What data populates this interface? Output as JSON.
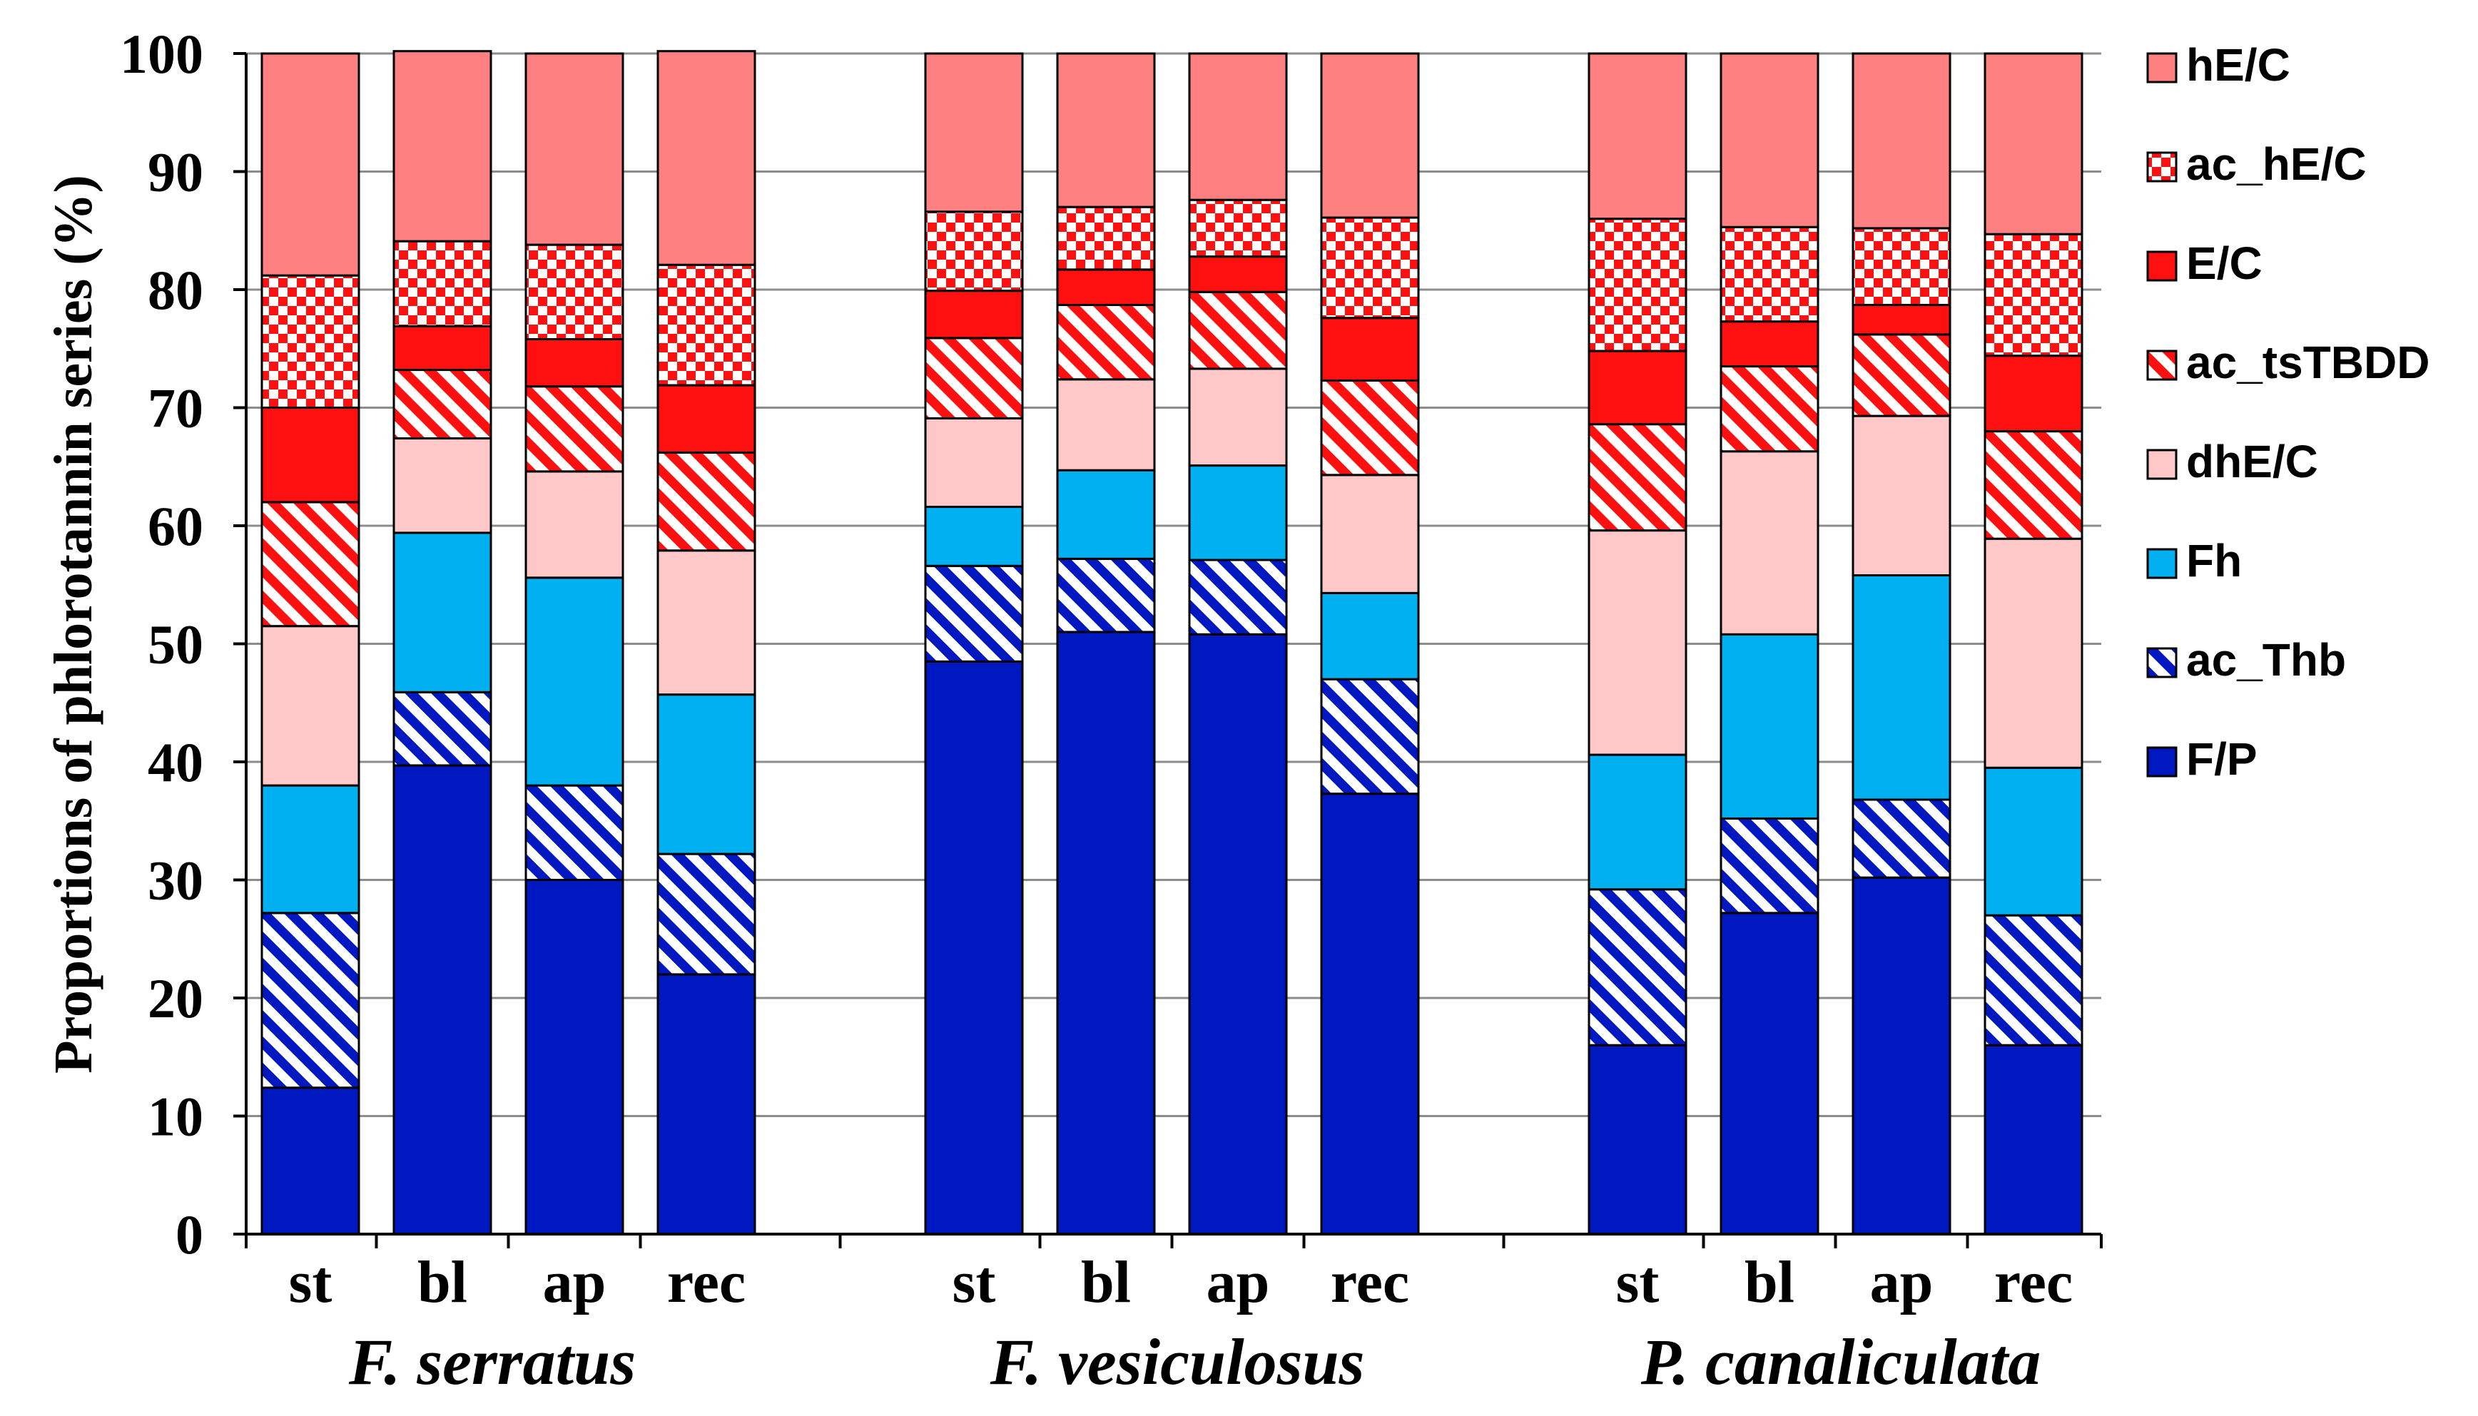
{
  "chart_data": {
    "type": "bar",
    "stacked": true,
    "percent": true,
    "ylabel": "Proportions of phlorotannin series (%)",
    "ylim": [
      0,
      100
    ],
    "yticks": [
      0,
      10,
      20,
      30,
      40,
      50,
      60,
      70,
      80,
      90,
      100
    ],
    "grid": true,
    "legend_position": "right",
    "groups": [
      {
        "name": "F. serratus",
        "categories": [
          "st",
          "bl",
          "ap",
          "rec"
        ]
      },
      {
        "name": "F. vesiculosus",
        "categories": [
          "st",
          "bl",
          "ap",
          "rec"
        ]
      },
      {
        "name": "P. canaliculata",
        "categories": [
          "st",
          "bl",
          "ap",
          "rec"
        ]
      }
    ],
    "series": [
      {
        "name": "F/P",
        "color": "#0018C0",
        "pattern": "solid",
        "values": [
          12.4,
          39.7,
          30.0,
          22.0,
          48.5,
          51.0,
          50.8,
          37.3,
          16.0,
          27.2,
          30.2,
          16.0
        ]
      },
      {
        "name": "ac_Thb",
        "color": "#0018C0",
        "pattern": "diagonal-stripe",
        "values": [
          14.8,
          6.2,
          8.0,
          10.2,
          8.1,
          6.2,
          6.3,
          9.7,
          13.2,
          8.0,
          6.6,
          11.0
        ]
      },
      {
        "name": "Fh",
        "color": "#00B0F0",
        "pattern": "solid",
        "values": [
          10.8,
          13.5,
          17.6,
          13.5,
          5.0,
          7.5,
          8.0,
          7.3,
          11.4,
          15.6,
          19.0,
          12.5
        ]
      },
      {
        "name": "dhE/C",
        "color": "#FFC8C8",
        "pattern": "solid",
        "values": [
          13.5,
          8.0,
          9.0,
          12.2,
          7.5,
          7.7,
          8.2,
          10.0,
          19.0,
          15.5,
          13.5,
          19.4
        ]
      },
      {
        "name": "ac_tsTBDD",
        "color": "#FF1010",
        "pattern": "diagonal-stripe",
        "values": [
          10.5,
          5.8,
          7.2,
          8.3,
          6.8,
          6.3,
          6.5,
          8.0,
          9.0,
          7.2,
          6.9,
          9.1
        ]
      },
      {
        "name": "E/C",
        "color": "#FF1010",
        "pattern": "solid",
        "values": [
          8.0,
          3.7,
          4.0,
          5.7,
          4.0,
          3.0,
          3.0,
          5.3,
          6.2,
          3.8,
          2.5,
          6.4
        ]
      },
      {
        "name": "ac_hE/C",
        "color": "#FF1010",
        "pattern": "checker",
        "values": [
          11.2,
          7.2,
          8.0,
          10.2,
          6.7,
          5.3,
          4.8,
          8.5,
          11.2,
          8.0,
          6.5,
          10.3
        ]
      },
      {
        "name": "hE/C",
        "color": "#FF8080",
        "pattern": "solid",
        "values": [
          18.8,
          16.1,
          16.2,
          18.1,
          13.4,
          13.0,
          12.4,
          13.9,
          14.0,
          14.7,
          14.8,
          15.3
        ]
      }
    ]
  }
}
